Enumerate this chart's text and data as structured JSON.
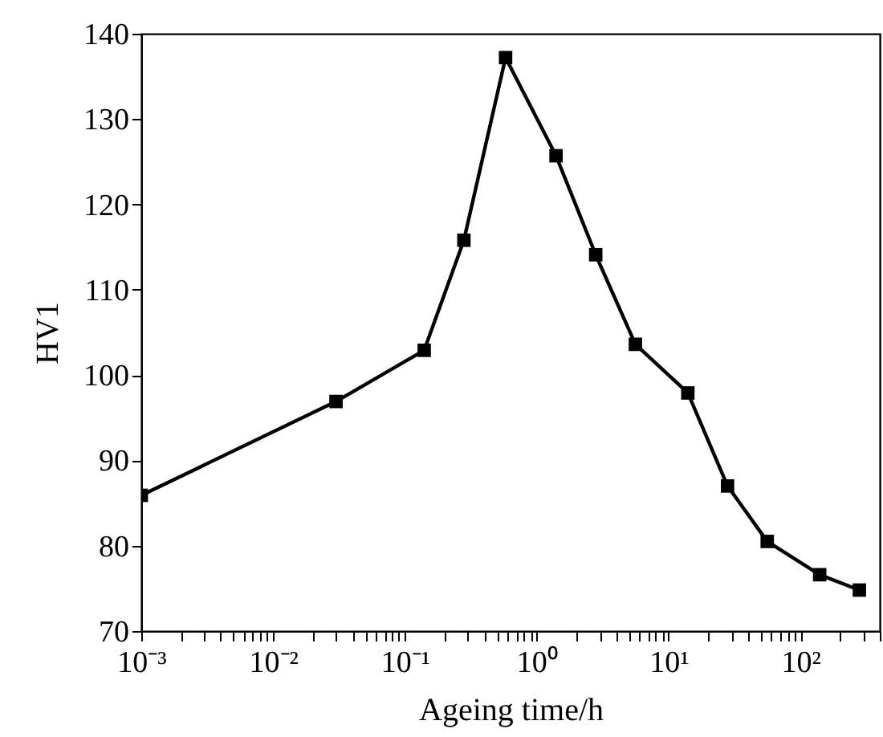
{
  "chart_data": {
    "type": "line",
    "xlabel": "Ageing time/h",
    "ylabel": "HV1",
    "log": "x",
    "marker": "square",
    "line_style": "solid",
    "grid": false,
    "x": [
      0.001,
      0.03,
      0.14,
      0.28,
      0.58,
      1.4,
      2.8,
      5.6,
      14,
      28,
      56,
      140,
      280
    ],
    "series": [
      {
        "color": "#000000",
        "values": [
          85.9,
          96.9,
          102.9,
          115.8,
          137.2,
          125.7,
          114.1,
          103.6,
          97.9,
          87,
          80.5,
          76.6,
          74.8
        ]
      }
    ],
    "xlim": [
      0.001,
      400
    ],
    "ylim": [
      70,
      140
    ],
    "yticks": [
      70,
      80,
      90,
      100,
      110,
      120,
      130,
      140
    ],
    "xticks": [
      {
        "value": 0.001,
        "label": "10⁻³"
      },
      {
        "value": 0.002,
        "label": null
      },
      {
        "value": 0.003,
        "label": null
      },
      {
        "value": 0.004,
        "label": null
      },
      {
        "value": 0.005,
        "label": null
      },
      {
        "value": 0.006,
        "label": null
      },
      {
        "value": 0.007,
        "label": null
      },
      {
        "value": 0.008,
        "label": null
      },
      {
        "value": 0.009,
        "label": null
      },
      {
        "value": 0.01,
        "label": "10⁻²"
      },
      {
        "value": 0.02,
        "label": null
      },
      {
        "value": 0.03,
        "label": null
      },
      {
        "value": 0.04,
        "label": null
      },
      {
        "value": 0.05,
        "label": null
      },
      {
        "value": 0.06,
        "label": null
      },
      {
        "value": 0.07,
        "label": null
      },
      {
        "value": 0.08,
        "label": null
      },
      {
        "value": 0.09,
        "label": null
      },
      {
        "value": 0.1,
        "label": "10⁻¹"
      },
      {
        "value": 0.2,
        "label": null
      },
      {
        "value": 0.3,
        "label": null
      },
      {
        "value": 0.4,
        "label": null
      },
      {
        "value": 0.5,
        "label": null
      },
      {
        "value": 0.6,
        "label": null
      },
      {
        "value": 0.7,
        "label": null
      },
      {
        "value": 0.8,
        "label": null
      },
      {
        "value": 0.9,
        "label": null
      },
      {
        "value": 1,
        "label": "10⁰"
      },
      {
        "value": 2,
        "label": null
      },
      {
        "value": 3,
        "label": null
      },
      {
        "value": 4,
        "label": null
      },
      {
        "value": 5,
        "label": null
      },
      {
        "value": 6,
        "label": null
      },
      {
        "value": 7,
        "label": null
      },
      {
        "value": 8,
        "label": null
      },
      {
        "value": 9,
        "label": null
      },
      {
        "value": 10,
        "label": "10¹"
      },
      {
        "value": 20,
        "label": null
      },
      {
        "value": 30,
        "label": null
      },
      {
        "value": 40,
        "label": null
      },
      {
        "value": 50,
        "label": null
      },
      {
        "value": 60,
        "label": null
      },
      {
        "value": 70,
        "label": null
      },
      {
        "value": 80,
        "label": null
      },
      {
        "value": 90,
        "label": null
      },
      {
        "value": 100,
        "label": "10²"
      },
      {
        "value": 200,
        "label": null
      },
      {
        "value": 300,
        "label": null
      },
      {
        "value": 400,
        "label": null
      }
    ]
  }
}
